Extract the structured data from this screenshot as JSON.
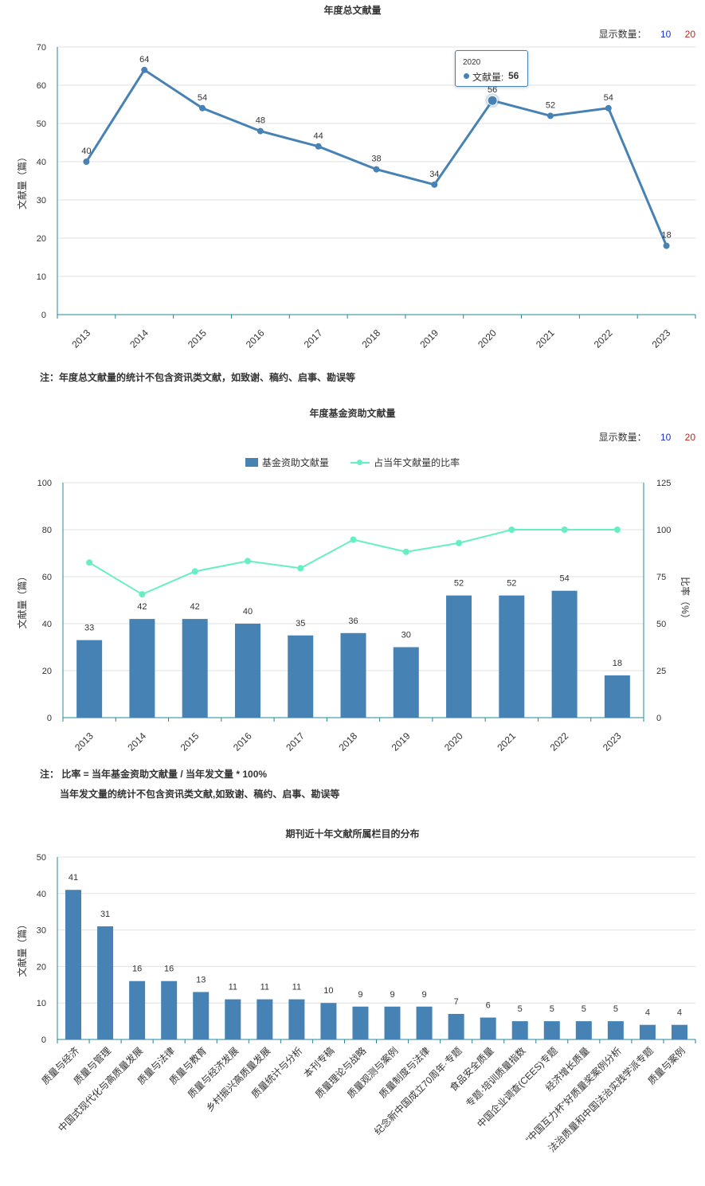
{
  "charts": {
    "annual": {
      "title": "年度总文献量",
      "display_count_label": "显示数量：",
      "display_options": [
        "10",
        "20"
      ],
      "note": "注：年度总文献量的统计不包含资讯类文献，如致谢、稿约、启事、勘误等",
      "tooltip": {
        "year": "2020",
        "label": "文献量:",
        "value": "56"
      }
    },
    "funded": {
      "title": "年度基金资助文献量",
      "display_count_label": "显示数量：",
      "display_options": [
        "10",
        "20"
      ],
      "legend": {
        "bar": "基金资助文献量",
        "line": "占当年文献量的比率"
      },
      "note_line1": "注：  比率 = 当年基金资助文献量 / 当年发文量 * 100%",
      "note_line2": "当年发文量的统计不包含资讯类文献,如致谢、稿约、启事、勘误等"
    },
    "columns": {
      "title": "期刊近十年文献所属栏目的分布"
    }
  },
  "colors": {
    "primary": "#4682b4",
    "ratio_line": "#66eec4",
    "axis": "#1f8a9a",
    "grid": "#e0e0e0",
    "option_blue": "#1a2fd0",
    "option_red": "#d0201a"
  },
  "chart_data": [
    {
      "type": "line",
      "title": "年度总文献量",
      "ylabel": "文献量（篇）",
      "xlabel": "",
      "categories": [
        "2013",
        "2014",
        "2015",
        "2016",
        "2017",
        "2018",
        "2019",
        "2020",
        "2021",
        "2022",
        "2023"
      ],
      "series": [
        {
          "name": "文献量",
          "values": [
            40,
            64,
            54,
            48,
            44,
            38,
            34,
            56,
            52,
            54,
            18
          ]
        }
      ],
      "ylim": [
        0,
        70
      ],
      "yticks": [
        0,
        10,
        20,
        30,
        40,
        50,
        60,
        70
      ],
      "grid": true,
      "highlighted_index": 7
    },
    {
      "type": "bar",
      "title": "年度基金资助文献量",
      "ylabel": "文献量（篇）",
      "y2label": "比率（%）",
      "xlabel": "",
      "categories": [
        "2013",
        "2014",
        "2015",
        "2016",
        "2017",
        "2018",
        "2019",
        "2020",
        "2021",
        "2022",
        "2023"
      ],
      "series": [
        {
          "name": "基金资助文献量",
          "type": "bar",
          "axis": "left",
          "values": [
            33,
            42,
            42,
            40,
            35,
            36,
            30,
            52,
            52,
            54,
            18
          ]
        },
        {
          "name": "占当年文献量的比率",
          "type": "line",
          "axis": "right",
          "values": [
            82.5,
            65.6,
            77.8,
            83.3,
            79.5,
            94.7,
            88.2,
            92.9,
            100,
            100,
            100
          ]
        }
      ],
      "ylim": [
        0,
        100
      ],
      "yticks": [
        0,
        20,
        40,
        60,
        80,
        100
      ],
      "y2lim": [
        0,
        125
      ],
      "y2ticks": [
        0,
        25,
        50,
        75,
        100,
        125
      ],
      "legend_position": "top-center",
      "grid": true
    },
    {
      "type": "bar",
      "title": "期刊近十年文献所属栏目的分布",
      "ylabel": "文献量（篇）",
      "xlabel": "",
      "categories": [
        "质量与经济",
        "质量与管理",
        "中国式现代化与高质量发展",
        "质量与法律",
        "质量与教育",
        "质量与经济发展",
        "乡村振兴高质量发展",
        "质量统计与分析",
        "本刊专稿",
        "质量理论与战略",
        "质量观测与案例",
        "质量制度与法律",
        "纪念新中国成立70周年·专题",
        "食品安全质量",
        "专题·培训质量指数",
        "中国企业调查(CEES)专题",
        "经济增长质量",
        "“中国互力杯”好质量奖案例分析",
        "法治质量和中国法治实践学派专题",
        "质量与案例"
      ],
      "values": [
        41,
        31,
        16,
        16,
        13,
        11,
        11,
        11,
        10,
        9,
        9,
        9,
        7,
        6,
        5,
        5,
        5,
        5,
        4,
        4
      ],
      "ylim": [
        0,
        50
      ],
      "yticks": [
        0,
        10,
        20,
        30,
        40,
        50
      ],
      "grid": true
    }
  ]
}
